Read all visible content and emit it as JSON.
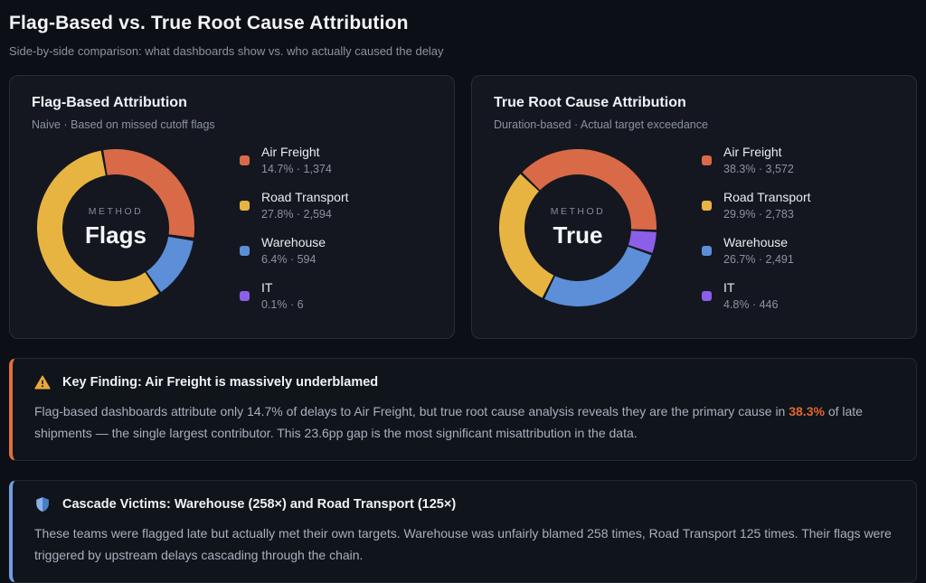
{
  "page": {
    "title": "Flag-Based vs. True Root Cause Attribution",
    "subtitle": "Side-by-side comparison: what dashboards show vs. who actually caused the delay"
  },
  "colors": {
    "air_freight": "#d96a48",
    "road_transport": "#e8b441",
    "warehouse": "#5c8fd8",
    "it": "#8b5fe8",
    "warn_accent": "#e0703c",
    "info_accent": "#6f9fe3",
    "highlight": "#e0662f"
  },
  "cards": [
    {
      "title": "Flag-Based Attribution",
      "subtitle": "Naive · Based on missed cutoff flags",
      "center_label": "METHOD",
      "center_value": "Flags",
      "legend": [
        {
          "label": "Air Freight",
          "value": "14.7% · 1,374",
          "color": "#d96a48"
        },
        {
          "label": "Road Transport",
          "value": "27.8% · 2,594",
          "color": "#e8b441"
        },
        {
          "label": "Warehouse",
          "value": "6.4% · 594",
          "color": "#5c8fd8"
        },
        {
          "label": "IT",
          "value": "0.1% · 6",
          "color": "#8b5fe8"
        }
      ],
      "donut": {
        "start_angle": -10,
        "stroke_width": 28,
        "gap_degrees": 1.8,
        "segments": [
          {
            "name": "Air Freight",
            "pct": 14.7,
            "color": "#d96a48"
          },
          {
            "name": "IT",
            "pct": 0.1,
            "color": "#8b5fe8"
          },
          {
            "name": "Warehouse",
            "pct": 6.4,
            "color": "#5c8fd8"
          },
          {
            "name": "Road Transport",
            "pct": 27.8,
            "color": "#e8b441"
          }
        ]
      }
    },
    {
      "title": "True Root Cause Attribution",
      "subtitle": "Duration-based · Actual target exceedance",
      "center_label": "METHOD",
      "center_value": "True",
      "legend": [
        {
          "label": "Air Freight",
          "value": "38.3% · 3,572",
          "color": "#d96a48"
        },
        {
          "label": "Road Transport",
          "value": "29.9% · 2,783",
          "color": "#e8b441"
        },
        {
          "label": "Warehouse",
          "value": "26.7% · 2,491",
          "color": "#5c8fd8"
        },
        {
          "label": "IT",
          "value": "4.8% · 446",
          "color": "#8b5fe8"
        }
      ],
      "donut": {
        "start_angle": -46,
        "stroke_width": 28,
        "gap_degrees": 1.8,
        "segments": [
          {
            "name": "Air Freight",
            "pct": 38.3,
            "color": "#d96a48"
          },
          {
            "name": "IT",
            "pct": 4.8,
            "color": "#8b5fe8"
          },
          {
            "name": "Warehouse",
            "pct": 26.7,
            "color": "#5c8fd8"
          },
          {
            "name": "Road Transport",
            "pct": 29.9,
            "color": "#e8b441"
          }
        ]
      }
    }
  ],
  "callouts": [
    {
      "title": "Key Finding: Air Freight is massively underblamed",
      "body_before": "Flag-based dashboards attribute only 14.7% of delays to Air Freight, but true root cause analysis reveals they are the primary cause in ",
      "body_highlight": "38.3%",
      "body_after": " of late shipments — the single largest contributor. This 23.6pp gap is the most significant misattribution in the data."
    },
    {
      "title": "Cascade Victims: Warehouse (258×) and Road Transport (125×)",
      "body": "These teams were flagged late but actually met their own targets. Warehouse was unfairly blamed 258 times, Road Transport 125 times. Their flags were triggered by upstream delays cascading through the chain."
    }
  ],
  "chart_data": [
    {
      "type": "pie",
      "variant": "donut",
      "title": "Flag-Based Attribution",
      "subtitle": "Naive · Based on missed cutoff flags",
      "center_label": "METHOD",
      "center_value": "Flags",
      "categories": [
        "Air Freight",
        "Road Transport",
        "Warehouse",
        "IT"
      ],
      "values_pct": [
        14.7,
        27.8,
        6.4,
        0.1
      ],
      "counts": [
        1374,
        2594,
        594,
        6
      ],
      "colors": [
        "#d96a48",
        "#e8b441",
        "#5c8fd8",
        "#8b5fe8"
      ],
      "legend_position": "right"
    },
    {
      "type": "pie",
      "variant": "donut",
      "title": "True Root Cause Attribution",
      "subtitle": "Duration-based · Actual target exceedance",
      "center_label": "METHOD",
      "center_value": "True",
      "categories": [
        "Air Freight",
        "Road Transport",
        "Warehouse",
        "IT"
      ],
      "values_pct": [
        38.3,
        29.9,
        26.7,
        4.8
      ],
      "counts": [
        3572,
        2783,
        2491,
        446
      ],
      "colors": [
        "#d96a48",
        "#e8b441",
        "#5c8fd8",
        "#8b5fe8"
      ],
      "legend_position": "right"
    }
  ]
}
